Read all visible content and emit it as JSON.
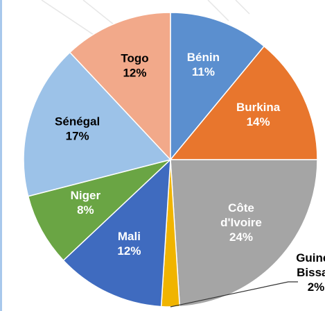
{
  "chart_data": {
    "type": "pie",
    "categories": [
      "Bénin",
      "Burkina",
      "Côte d'Ivoire",
      "Guinée Bissau",
      "Mali",
      "Niger",
      "Sénégal",
      "Togo"
    ],
    "values": [
      11,
      14,
      24,
      2,
      12,
      8,
      17,
      12
    ],
    "value_labels": [
      "11%",
      "14%",
      "24%",
      "2%",
      "12%",
      "8%",
      "17%",
      "12%"
    ],
    "colors": [
      "#5b8fcf",
      "#e8762d",
      "#a5a5a5",
      "#f0b400",
      "#3f6bbf",
      "#6aa544",
      "#9cc2e8",
      "#f2a98a"
    ]
  }
}
